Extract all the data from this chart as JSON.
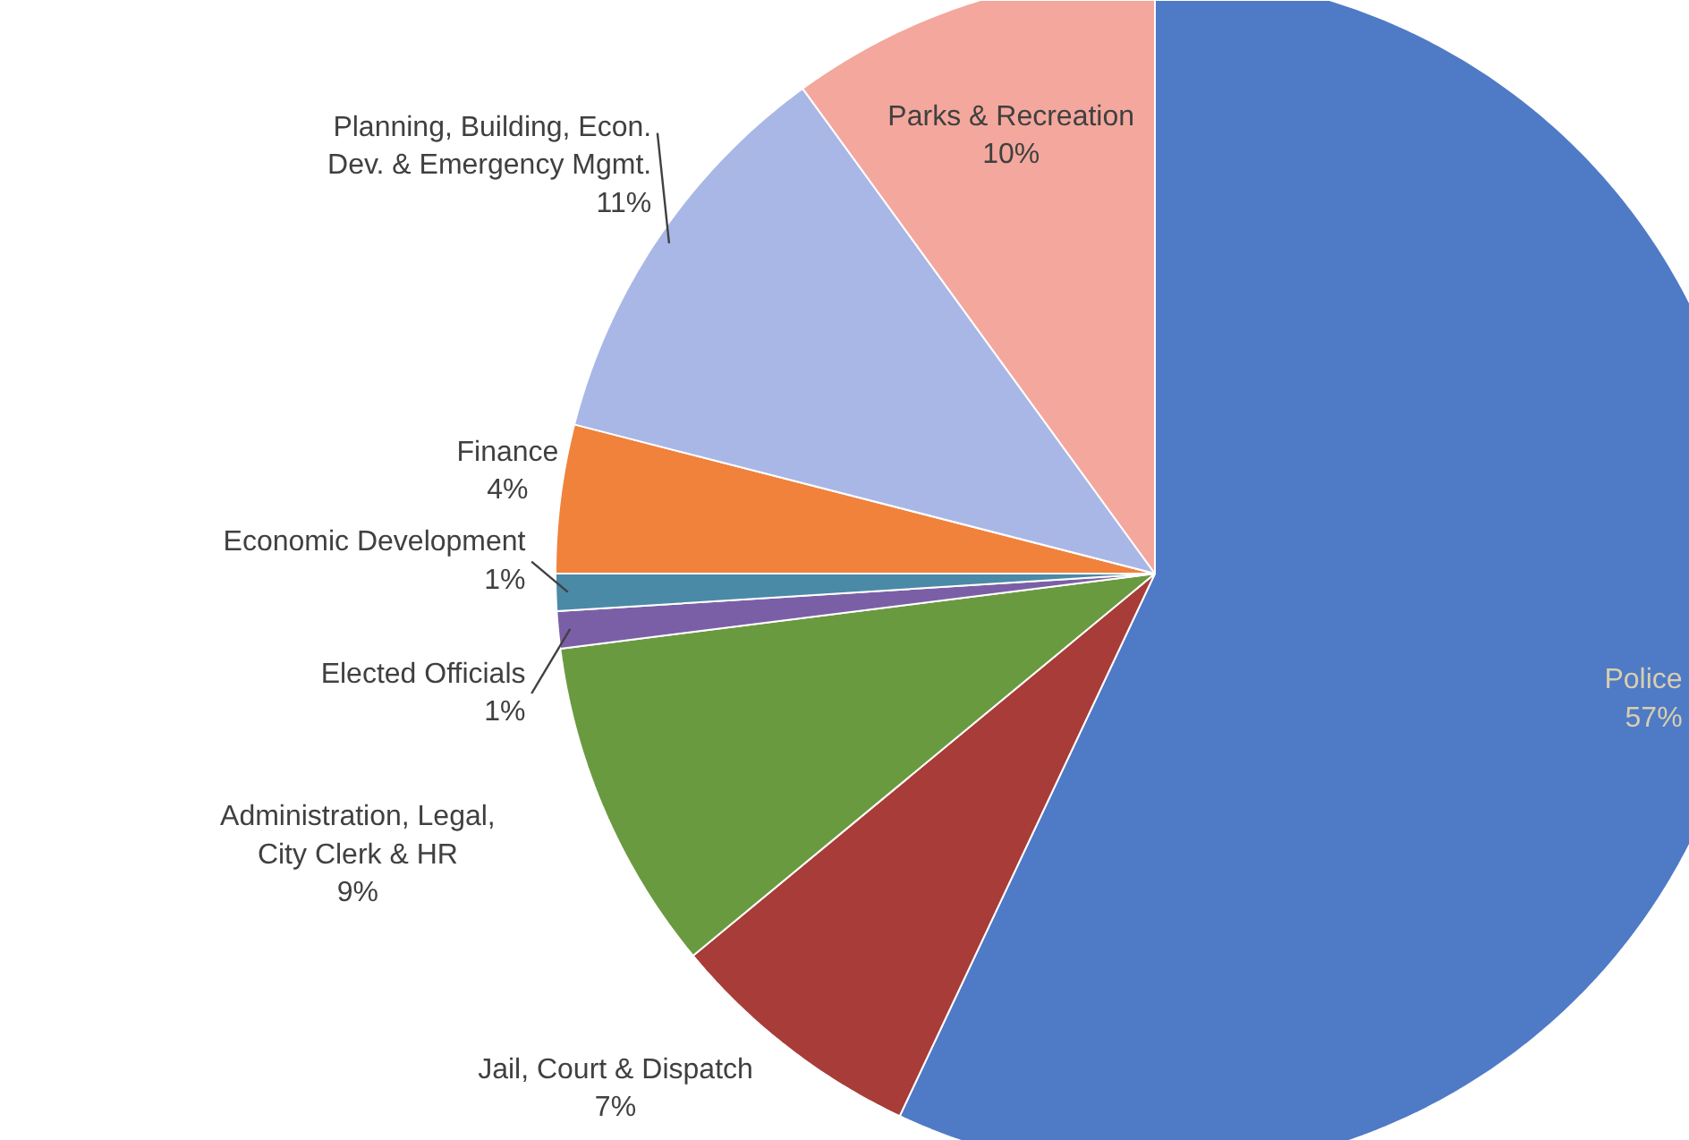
{
  "chart_data": {
    "type": "pie",
    "categories": [
      "Police",
      "Jail, Court & Dispatch",
      "Administration, Legal, City Clerk & HR",
      "Elected Officials",
      "Economic Development",
      "Finance",
      "Planning, Building, Econ. Dev. & Emergency Mgmt.",
      "Parks & Recreation"
    ],
    "values": [
      57,
      7,
      9,
      1,
      1,
      4,
      11,
      10
    ],
    "value_labels": [
      "57%",
      "7%",
      "9%",
      "1%",
      "1%",
      "4%",
      "11%",
      "10%"
    ],
    "colors": [
      "#4f7ac6",
      "#a83c38",
      "#6a9a40",
      "#7b5fa6",
      "#4a8aa6",
      "#f0823c",
      "#a9b7e6",
      "#f4a79d"
    ]
  }
}
